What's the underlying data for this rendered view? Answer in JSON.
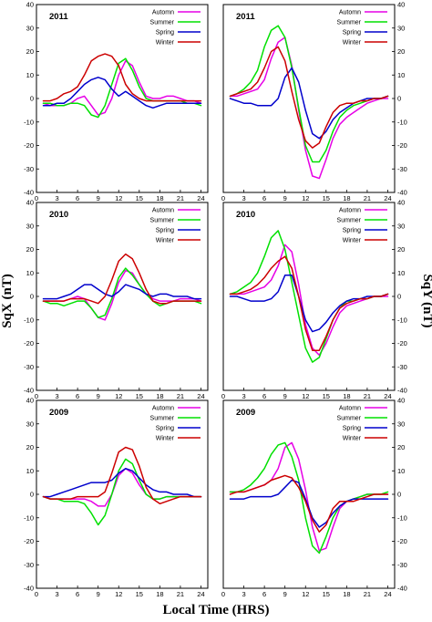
{
  "figure": {
    "xlabel": "Local Time (HRS)",
    "ylabel_left": "SqX (nT)",
    "ylabel_right": "SqY (nT)"
  },
  "chart_data": [
    {
      "type": "line",
      "component": "SqX",
      "year": "2011",
      "row": 0,
      "col": 0,
      "xlim": [
        0,
        25
      ],
      "ylim": [
        -40,
        40
      ],
      "xticks": [
        0,
        3,
        6,
        9,
        12,
        15,
        18,
        21,
        24
      ],
      "yticks": [
        -40,
        -30,
        -20,
        -10,
        0,
        10,
        20,
        30,
        40
      ],
      "grid": false,
      "legend": "top-right",
      "x": [
        1,
        2,
        3,
        4,
        5,
        6,
        7,
        8,
        9,
        10,
        11,
        12,
        13,
        14,
        15,
        16,
        17,
        18,
        19,
        20,
        21,
        22,
        23,
        24
      ],
      "series": [
        {
          "name": "Automn",
          "color": "#e600e6",
          "values": [
            -2,
            -3,
            -3,
            -3,
            -2,
            0,
            1,
            -3,
            -7,
            -6,
            0,
            10,
            16,
            14,
            7,
            1,
            0,
            0,
            1,
            1,
            0,
            -1,
            -1,
            -2
          ]
        },
        {
          "name": "Summer",
          "color": "#00e000",
          "values": [
            -2,
            -2,
            -3,
            -3,
            -2,
            -2,
            -3,
            -7,
            -8,
            -3,
            6,
            15,
            17,
            12,
            5,
            0,
            -1,
            -1,
            -1,
            -1,
            -1,
            -2,
            -2,
            -3
          ]
        },
        {
          "name": "Spring",
          "color": "#0000cc",
          "values": [
            -3,
            -3,
            -2,
            -2,
            0,
            3,
            6,
            8,
            9,
            8,
            4,
            1,
            3,
            1,
            -1,
            -3,
            -4,
            -3,
            -2,
            -2,
            -2,
            -2,
            -2,
            -2
          ]
        },
        {
          "name": "Winter",
          "color": "#cc0000",
          "values": [
            -1,
            -1,
            0,
            2,
            3,
            5,
            10,
            16,
            18,
            19,
            18,
            14,
            6,
            2,
            0,
            -1,
            -1,
            -1,
            -1,
            -1,
            -1,
            -1,
            -1,
            -1
          ]
        }
      ]
    },
    {
      "type": "line",
      "component": "SqY",
      "year": "2011",
      "row": 0,
      "col": 1,
      "xlim": [
        0,
        25
      ],
      "ylim": [
        -40,
        40
      ],
      "xticks": [
        0,
        3,
        6,
        9,
        12,
        15,
        18,
        21,
        24
      ],
      "yticks": [
        -40,
        -30,
        -20,
        -10,
        0,
        10,
        20,
        30,
        40
      ],
      "grid": false,
      "legend": "top-right",
      "x": [
        1,
        2,
        3,
        4,
        5,
        6,
        7,
        8,
        9,
        10,
        11,
        12,
        13,
        14,
        15,
        16,
        17,
        18,
        19,
        20,
        21,
        22,
        23,
        24
      ],
      "series": [
        {
          "name": "Automn",
          "color": "#e600e6",
          "values": [
            1,
            1,
            2,
            3,
            4,
            8,
            17,
            24,
            26,
            14,
            -5,
            -22,
            -33,
            -34,
            -26,
            -17,
            -11,
            -8,
            -6,
            -4,
            -2,
            -1,
            0,
            0
          ]
        },
        {
          "name": "Summer",
          "color": "#00e000",
          "values": [
            1,
            2,
            4,
            7,
            12,
            22,
            29,
            31,
            26,
            13,
            -4,
            -20,
            -27,
            -27,
            -22,
            -14,
            -8,
            -5,
            -3,
            -2,
            -1,
            0,
            0,
            1
          ]
        },
        {
          "name": "Spring",
          "color": "#0000cc",
          "values": [
            0,
            -1,
            -2,
            -2,
            -3,
            -3,
            -3,
            0,
            9,
            13,
            7,
            -5,
            -15,
            -17,
            -14,
            -9,
            -6,
            -4,
            -2,
            -1,
            0,
            0,
            0,
            1
          ]
        },
        {
          "name": "Winter",
          "color": "#cc0000",
          "values": [
            1,
            2,
            3,
            4,
            7,
            13,
            20,
            22,
            16,
            3,
            -9,
            -18,
            -21,
            -19,
            -12,
            -6,
            -3,
            -2,
            -2,
            -1,
            -1,
            0,
            0,
            1
          ]
        }
      ]
    },
    {
      "type": "line",
      "component": "SqX",
      "year": "2010",
      "row": 1,
      "col": 0,
      "xlim": [
        0,
        25
      ],
      "ylim": [
        -40,
        40
      ],
      "xticks": [
        0,
        3,
        6,
        9,
        12,
        15,
        18,
        21,
        24
      ],
      "yticks": [
        -40,
        -30,
        -20,
        -10,
        0,
        10,
        20,
        30,
        40
      ],
      "grid": false,
      "legend": "top-right",
      "x": [
        1,
        2,
        3,
        4,
        5,
        6,
        7,
        8,
        9,
        10,
        11,
        12,
        13,
        14,
        15,
        16,
        17,
        18,
        19,
        20,
        21,
        22,
        23,
        24
      ],
      "series": [
        {
          "name": "Automn",
          "color": "#e600e6",
          "values": [
            -2,
            -2,
            -2,
            -2,
            -1,
            0,
            -1,
            -5,
            -9,
            -10,
            -3,
            6,
            11,
            10,
            5,
            1,
            -1,
            -2,
            -2,
            -2,
            -1,
            -1,
            -1,
            -2
          ]
        },
        {
          "name": "Summer",
          "color": "#00e000",
          "values": [
            -2,
            -3,
            -3,
            -4,
            -3,
            -2,
            -2,
            -5,
            -9,
            -8,
            -1,
            8,
            12,
            9,
            5,
            1,
            -2,
            -4,
            -3,
            -2,
            -2,
            -2,
            -2,
            -3
          ]
        },
        {
          "name": "Spring",
          "color": "#0000cc",
          "values": [
            -1,
            -1,
            -1,
            0,
            1,
            3,
            5,
            5,
            3,
            1,
            0,
            2,
            5,
            4,
            3,
            1,
            0,
            1,
            1,
            0,
            0,
            0,
            -1,
            -1
          ]
        },
        {
          "name": "Winter",
          "color": "#cc0000",
          "values": [
            -2,
            -2,
            -2,
            -2,
            -1,
            -1,
            -1,
            -2,
            -3,
            0,
            7,
            15,
            18,
            16,
            10,
            3,
            -2,
            -3,
            -3,
            -2,
            -2,
            -2,
            -2,
            -2
          ]
        }
      ]
    },
    {
      "type": "line",
      "component": "SqY",
      "year": "2010",
      "row": 1,
      "col": 1,
      "xlim": [
        0,
        25
      ],
      "ylim": [
        -40,
        40
      ],
      "xticks": [
        0,
        3,
        6,
        9,
        12,
        15,
        18,
        21,
        24
      ],
      "yticks": [
        -40,
        -30,
        -20,
        -10,
        0,
        10,
        20,
        30,
        40
      ],
      "grid": false,
      "legend": "top-right",
      "x": [
        1,
        2,
        3,
        4,
        5,
        6,
        7,
        8,
        9,
        10,
        11,
        12,
        13,
        14,
        15,
        16,
        17,
        18,
        19,
        20,
        21,
        22,
        23,
        24
      ],
      "series": [
        {
          "name": "Automn",
          "color": "#e600e6",
          "values": [
            1,
            1,
            1,
            2,
            3,
            4,
            7,
            13,
            22,
            19,
            5,
            -12,
            -22,
            -25,
            -20,
            -13,
            -7,
            -4,
            -3,
            -2,
            -1,
            0,
            0,
            0
          ]
        },
        {
          "name": "Summer",
          "color": "#00e000",
          "values": [
            1,
            2,
            4,
            6,
            10,
            17,
            25,
            28,
            20,
            6,
            -8,
            -22,
            -28,
            -26,
            -18,
            -10,
            -5,
            -2,
            -2,
            -1,
            -1,
            0,
            0,
            1
          ]
        },
        {
          "name": "Spring",
          "color": "#0000cc",
          "values": [
            0,
            0,
            -1,
            -2,
            -2,
            -2,
            -1,
            2,
            9,
            9,
            0,
            -10,
            -15,
            -14,
            -11,
            -7,
            -4,
            -2,
            -1,
            -1,
            0,
            0,
            0,
            1
          ]
        },
        {
          "name": "Winter",
          "color": "#cc0000",
          "values": [
            1,
            1,
            2,
            3,
            5,
            8,
            12,
            15,
            17,
            12,
            0,
            -14,
            -23,
            -23,
            -17,
            -10,
            -5,
            -3,
            -2,
            -1,
            -1,
            0,
            0,
            1
          ]
        }
      ]
    },
    {
      "type": "line",
      "component": "SqX",
      "year": "2009",
      "row": 2,
      "col": 0,
      "xlim": [
        0,
        25
      ],
      "ylim": [
        -40,
        40
      ],
      "xticks": [
        0,
        3,
        6,
        9,
        12,
        15,
        18,
        21,
        24
      ],
      "yticks": [
        -40,
        -30,
        -20,
        -10,
        0,
        10,
        20,
        30,
        40
      ],
      "grid": false,
      "legend": "top-right",
      "x": [
        1,
        2,
        3,
        4,
        5,
        6,
        7,
        8,
        9,
        10,
        11,
        12,
        13,
        14,
        15,
        16,
        17,
        18,
        19,
        20,
        21,
        22,
        23,
        24
      ],
      "series": [
        {
          "name": "Automn",
          "color": "#e600e6",
          "values": [
            -1,
            -2,
            -2,
            -2,
            -2,
            -2,
            -2,
            -3,
            -5,
            -5,
            0,
            8,
            11,
            9,
            4,
            0,
            -2,
            -2,
            -1,
            -1,
            -1,
            -1,
            -1,
            -1
          ]
        },
        {
          "name": "Summer",
          "color": "#00e000",
          "values": [
            -1,
            -2,
            -2,
            -3,
            -3,
            -3,
            -4,
            -8,
            -13,
            -9,
            0,
            10,
            15,
            13,
            6,
            0,
            -2,
            -2,
            -1,
            -1,
            -1,
            -1,
            -1,
            -1
          ]
        },
        {
          "name": "Spring",
          "color": "#0000cc",
          "values": [
            -1,
            -1,
            0,
            1,
            2,
            3,
            4,
            5,
            5,
            5,
            6,
            9,
            11,
            10,
            7,
            4,
            2,
            1,
            1,
            0,
            0,
            0,
            -1,
            -1
          ]
        },
        {
          "name": "Winter",
          "color": "#cc0000",
          "values": [
            -1,
            -2,
            -2,
            -2,
            -2,
            -1,
            -1,
            -1,
            -1,
            1,
            9,
            18,
            20,
            19,
            12,
            3,
            -2,
            -4,
            -3,
            -2,
            -1,
            -1,
            -1,
            -1
          ]
        }
      ]
    },
    {
      "type": "line",
      "component": "SqY",
      "year": "2009",
      "row": 2,
      "col": 1,
      "xlim": [
        0,
        25
      ],
      "ylim": [
        -40,
        40
      ],
      "xticks": [
        0,
        3,
        6,
        9,
        12,
        15,
        18,
        21,
        24
      ],
      "yticks": [
        -40,
        -30,
        -20,
        -10,
        0,
        10,
        20,
        30,
        40
      ],
      "grid": false,
      "legend": "top-right",
      "x": [
        1,
        2,
        3,
        4,
        5,
        6,
        7,
        8,
        9,
        10,
        11,
        12,
        13,
        14,
        15,
        16,
        17,
        18,
        19,
        20,
        21,
        22,
        23,
        24
      ],
      "series": [
        {
          "name": "Automn",
          "color": "#e600e6",
          "values": [
            1,
            1,
            1,
            2,
            3,
            4,
            6,
            11,
            20,
            22,
            15,
            2,
            -14,
            -24,
            -23,
            -14,
            -6,
            -3,
            -2,
            -1,
            0,
            0,
            0,
            0
          ]
        },
        {
          "name": "Summer",
          "color": "#00e000",
          "values": [
            1,
            1,
            2,
            4,
            7,
            11,
            17,
            21,
            22,
            16,
            6,
            -10,
            -22,
            -25,
            -18,
            -10,
            -5,
            -3,
            -2,
            -1,
            0,
            0,
            0,
            1
          ]
        },
        {
          "name": "Spring",
          "color": "#0000cc",
          "values": [
            -2,
            -2,
            -2,
            -1,
            -1,
            -1,
            -1,
            0,
            3,
            6,
            5,
            -2,
            -10,
            -14,
            -12,
            -8,
            -5,
            -3,
            -2,
            -2,
            -2,
            -2,
            -2,
            -2
          ]
        },
        {
          "name": "Winter",
          "color": "#cc0000",
          "values": [
            0,
            1,
            1,
            2,
            3,
            4,
            6,
            7,
            8,
            7,
            3,
            -3,
            -11,
            -16,
            -13,
            -6,
            -3,
            -3,
            -3,
            -2,
            -1,
            0,
            0,
            0
          ]
        }
      ]
    }
  ]
}
